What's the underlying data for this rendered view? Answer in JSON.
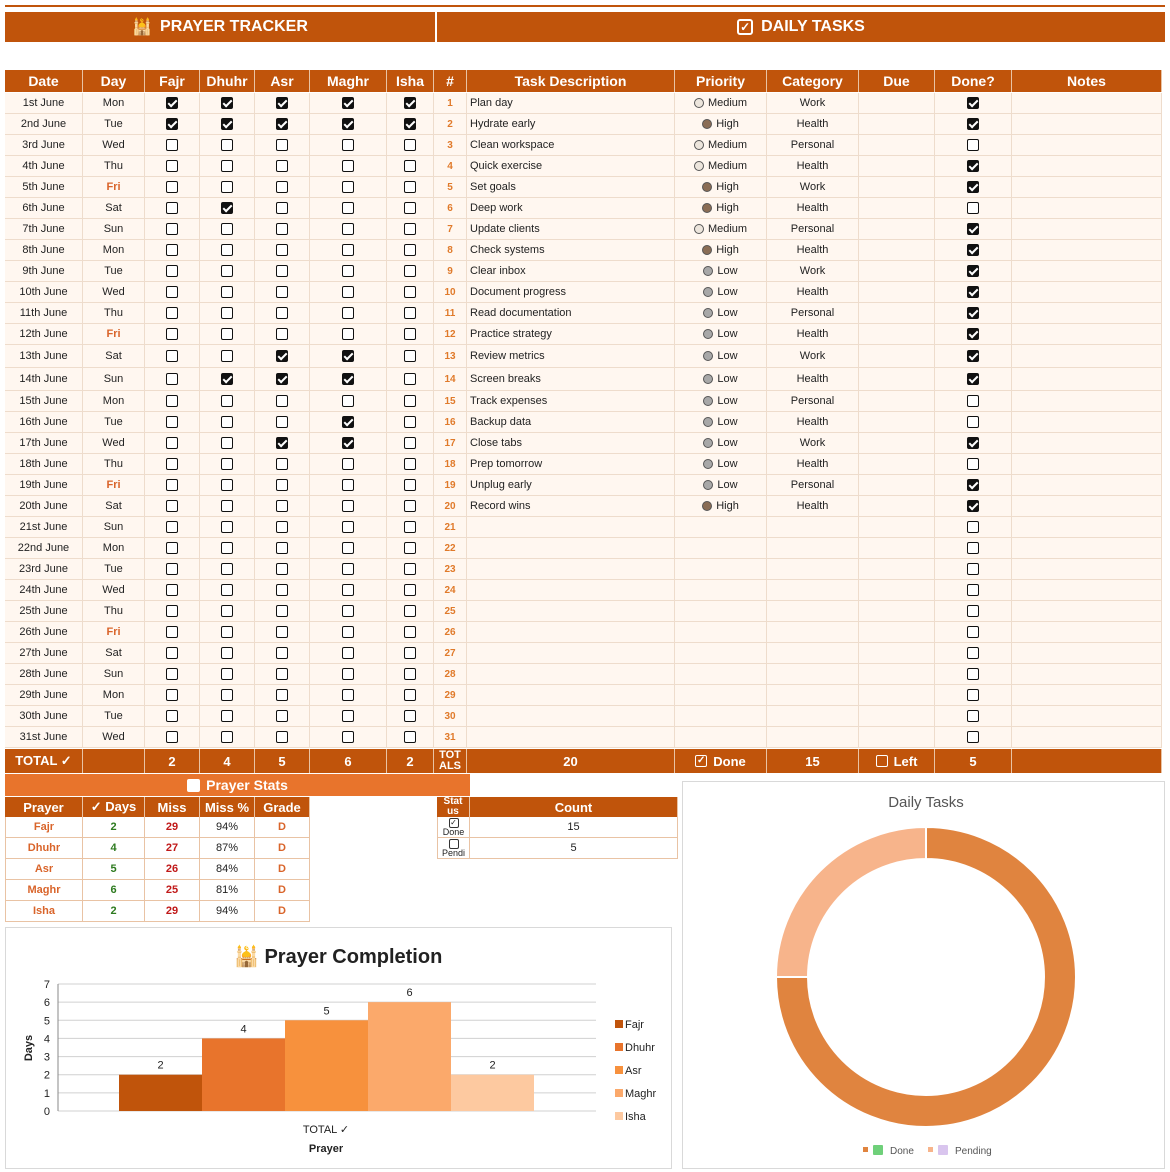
{
  "banners": {
    "prayer": "PRAYER TRACKER",
    "tasks": "DAILY TASKS"
  },
  "columns": [
    "Date",
    "Day",
    "Fajr",
    "Dhuhr",
    "Asr",
    "Maghr",
    "Isha",
    "#",
    "Task Description",
    "Priority",
    "Category",
    "Due",
    "Done?",
    "Notes"
  ],
  "days": [
    {
      "date": "1st June",
      "day": "Mon",
      "p": [
        1,
        1,
        1,
        1,
        1
      ]
    },
    {
      "date": "2nd June",
      "day": "Tue",
      "p": [
        1,
        1,
        1,
        1,
        1
      ]
    },
    {
      "date": "3rd June",
      "day": "Wed",
      "p": [
        0,
        0,
        0,
        0,
        0
      ]
    },
    {
      "date": "4th June",
      "day": "Thu",
      "p": [
        0,
        0,
        0,
        0,
        0
      ]
    },
    {
      "date": "5th June",
      "day": "Fri",
      "p": [
        0,
        0,
        0,
        0,
        0
      ]
    },
    {
      "date": "6th June",
      "day": "Sat",
      "p": [
        0,
        1,
        0,
        0,
        0
      ]
    },
    {
      "date": "7th June",
      "day": "Sun",
      "p": [
        0,
        0,
        0,
        0,
        0
      ]
    },
    {
      "date": "8th June",
      "day": "Mon",
      "p": [
        0,
        0,
        0,
        0,
        0
      ]
    },
    {
      "date": "9th June",
      "day": "Tue",
      "p": [
        0,
        0,
        0,
        0,
        0
      ]
    },
    {
      "date": "10th June",
      "day": "Wed",
      "p": [
        0,
        0,
        0,
        0,
        0
      ]
    },
    {
      "date": "11th June",
      "day": "Thu",
      "p": [
        0,
        0,
        0,
        0,
        0
      ]
    },
    {
      "date": "12th June",
      "day": "Fri",
      "p": [
        0,
        0,
        0,
        0,
        0
      ]
    },
    {
      "date": "13th June",
      "day": "Sat",
      "p": [
        0,
        0,
        1,
        1,
        0
      ]
    },
    {
      "date": "14th June",
      "day": "Sun",
      "p": [
        0,
        1,
        1,
        1,
        0
      ]
    },
    {
      "date": "15th June",
      "day": "Mon",
      "p": [
        0,
        0,
        0,
        0,
        0
      ]
    },
    {
      "date": "16th June",
      "day": "Tue",
      "p": [
        0,
        0,
        0,
        1,
        0
      ]
    },
    {
      "date": "17th June",
      "day": "Wed",
      "p": [
        0,
        0,
        1,
        1,
        0
      ]
    },
    {
      "date": "18th June",
      "day": "Thu",
      "p": [
        0,
        0,
        0,
        0,
        0
      ]
    },
    {
      "date": "19th June",
      "day": "Fri",
      "p": [
        0,
        0,
        0,
        0,
        0
      ]
    },
    {
      "date": "20th June",
      "day": "Sat",
      "p": [
        0,
        0,
        0,
        0,
        0
      ]
    },
    {
      "date": "21st June",
      "day": "Sun",
      "p": [
        0,
        0,
        0,
        0,
        0
      ]
    },
    {
      "date": "22nd June",
      "day": "Mon",
      "p": [
        0,
        0,
        0,
        0,
        0
      ]
    },
    {
      "date": "23rd June",
      "day": "Tue",
      "p": [
        0,
        0,
        0,
        0,
        0
      ]
    },
    {
      "date": "24th June",
      "day": "Wed",
      "p": [
        0,
        0,
        0,
        0,
        0
      ]
    },
    {
      "date": "25th June",
      "day": "Thu",
      "p": [
        0,
        0,
        0,
        0,
        0
      ]
    },
    {
      "date": "26th June",
      "day": "Fri",
      "p": [
        0,
        0,
        0,
        0,
        0
      ]
    },
    {
      "date": "27th June",
      "day": "Sat",
      "p": [
        0,
        0,
        0,
        0,
        0
      ]
    },
    {
      "date": "28th June",
      "day": "Sun",
      "p": [
        0,
        0,
        0,
        0,
        0
      ]
    },
    {
      "date": "29th June",
      "day": "Mon",
      "p": [
        0,
        0,
        0,
        0,
        0
      ]
    },
    {
      "date": "30th June",
      "day": "Tue",
      "p": [
        0,
        0,
        0,
        0,
        0
      ]
    },
    {
      "date": "31st June",
      "day": "Wed",
      "p": [
        0,
        0,
        0,
        0,
        0
      ]
    }
  ],
  "tasks": [
    {
      "desc": "Plan day",
      "priority": "Medium",
      "category": "Work",
      "done": 1
    },
    {
      "desc": "Hydrate early",
      "priority": "High",
      "category": "Health",
      "done": 1
    },
    {
      "desc": "Clean workspace",
      "priority": "Medium",
      "category": "Personal",
      "done": 0
    },
    {
      "desc": "Quick exercise",
      "priority": "Medium",
      "category": "Health",
      "done": 1
    },
    {
      "desc": "Set goals",
      "priority": "High",
      "category": "Work",
      "done": 1
    },
    {
      "desc": "Deep work",
      "priority": "High",
      "category": "Health",
      "done": 0
    },
    {
      "desc": "Update clients",
      "priority": "Medium",
      "category": "Personal",
      "done": 1
    },
    {
      "desc": "Check systems",
      "priority": "High",
      "category": "Health",
      "done": 1
    },
    {
      "desc": "Clear inbox",
      "priority": "Low",
      "category": "Work",
      "done": 1
    },
    {
      "desc": "Document progress",
      "priority": "Low",
      "category": "Health",
      "done": 1
    },
    {
      "desc": "Read documentation",
      "priority": "Low",
      "category": "Personal",
      "done": 1
    },
    {
      "desc": "Practice strategy",
      "priority": "Low",
      "category": "Health",
      "done": 1
    },
    {
      "desc": "Review metrics",
      "priority": "Low",
      "category": "Work",
      "done": 1
    },
    {
      "desc": "Screen breaks",
      "priority": "Low",
      "category": "Health",
      "done": 1
    },
    {
      "desc": "Track expenses",
      "priority": "Low",
      "category": "Personal",
      "done": 0
    },
    {
      "desc": "Backup data",
      "priority": "Low",
      "category": "Health",
      "done": 0
    },
    {
      "desc": "Close tabs",
      "priority": "Low",
      "category": "Work",
      "done": 1
    },
    {
      "desc": "Prep tomorrow",
      "priority": "Low",
      "category": "Health",
      "done": 0
    },
    {
      "desc": "Unplug early",
      "priority": "Low",
      "category": "Personal",
      "done": 1
    },
    {
      "desc": "Record wins",
      "priority": "High",
      "category": "Health",
      "done": 1
    }
  ],
  "priority_colors": {
    "High": "#8a6d55",
    "Medium": "#ece5dc",
    "Low": "#a8a8a8"
  },
  "totals": {
    "label": "TOTAL ✓",
    "fajr": "2",
    "dhuhr": "4",
    "asr": "5",
    "maghr": "6",
    "isha": "2",
    "num": "TOT ALS",
    "tasks": "20",
    "done_label": "Done",
    "done": "15",
    "left_label": "Left",
    "left": "5"
  },
  "prayer_stats": {
    "title": "Prayer Stats",
    "headers": [
      "Prayer",
      "✓ Days",
      "Miss",
      "Miss %",
      "Grade"
    ],
    "rows": [
      {
        "name": "Fajr",
        "days": "2",
        "miss": "29",
        "pct": "94%",
        "grade": "D"
      },
      {
        "name": "Dhuhr",
        "days": "4",
        "miss": "27",
        "pct": "87%",
        "grade": "D"
      },
      {
        "name": "Asr",
        "days": "5",
        "miss": "26",
        "pct": "84%",
        "grade": "D"
      },
      {
        "name": "Maghr",
        "days": "6",
        "miss": "25",
        "pct": "81%",
        "grade": "D"
      },
      {
        "name": "Isha",
        "days": "2",
        "miss": "29",
        "pct": "94%",
        "grade": "D"
      }
    ]
  },
  "status_table": {
    "headers": [
      "Stat us",
      "Count"
    ],
    "rows": [
      {
        "status": "Done",
        "count": "15"
      },
      {
        "status": "Pendi",
        "count": "5"
      }
    ]
  },
  "chart_data": [
    {
      "type": "bar",
      "title": "Prayer Completion",
      "xlabel": "Prayer",
      "ylabel": "Days",
      "categories": [
        "TOTAL ✓"
      ],
      "ylim": [
        0,
        7
      ],
      "yticks": [
        0,
        1,
        2,
        3,
        4,
        5,
        6,
        7
      ],
      "series": [
        {
          "name": "Fajr",
          "values": [
            2
          ],
          "color": "#c0540b"
        },
        {
          "name": "Dhuhr",
          "values": [
            4
          ],
          "color": "#e8742c"
        },
        {
          "name": "Asr",
          "values": [
            5
          ],
          "color": "#f7913d"
        },
        {
          "name": "Maghr",
          "values": [
            6
          ],
          "color": "#fba96b"
        },
        {
          "name": "Isha",
          "values": [
            2
          ],
          "color": "#fdc9a0"
        }
      ],
      "grid": true,
      "legend": "right"
    },
    {
      "type": "pie",
      "title": "Daily Tasks",
      "categories": [
        "Done",
        "Pending"
      ],
      "values": [
        15,
        5
      ],
      "colors": [
        "#e0843f",
        "#f7b48b"
      ],
      "legend": "bottom"
    }
  ]
}
